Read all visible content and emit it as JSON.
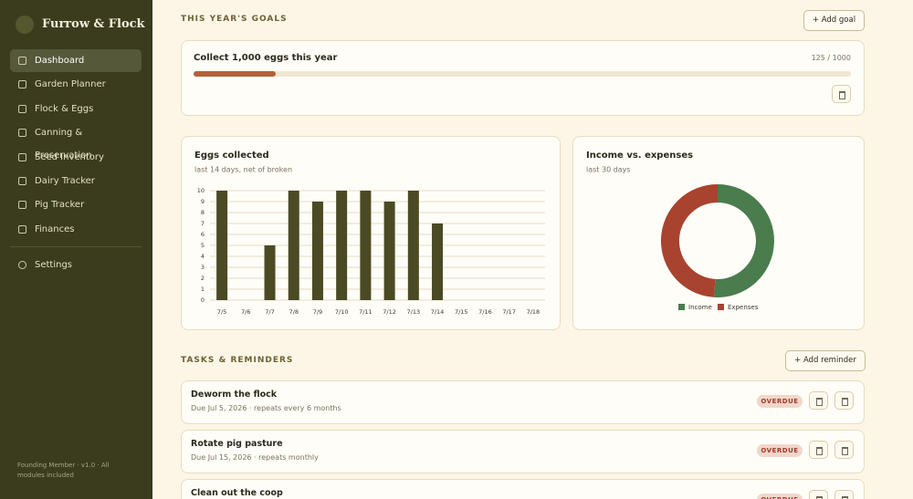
{
  "sidebar": {
    "brand": "Furrow & Flock",
    "nav": [
      "Dashboard",
      "Garden Planner",
      "Flock & Eggs",
      "Canning & Preservation",
      "Seed Inventory",
      "Dairy Tracker",
      "Pig Tracker",
      "Finances"
    ],
    "settings": "Settings",
    "footer": "Founding Member · v1.0 · All modules included"
  },
  "goals": {
    "heading": "THIS YEAR'S GOALS",
    "add_button": "+ Add goal",
    "items": [
      {
        "title": "Collect 1,000 eggs this year",
        "current": 125,
        "target": 1000,
        "label": "125 / 1000"
      }
    ]
  },
  "chart_data": [
    {
      "type": "bar",
      "title": "Eggs collected",
      "subtitle": "last 14 days, net of broken",
      "categories": [
        "7/5",
        "7/6",
        "7/7",
        "7/8",
        "7/9",
        "7/10",
        "7/11",
        "7/12",
        "7/13",
        "7/14",
        "7/15",
        "7/16",
        "7/17",
        "7/18"
      ],
      "values": [
        10,
        0,
        5,
        10,
        9,
        10,
        10,
        9,
        10,
        7,
        0,
        0,
        0,
        0
      ],
      "color": "#4a4a24",
      "ylim": [
        0,
        10
      ],
      "yticks": [
        0,
        1,
        2,
        3,
        4,
        5,
        6,
        7,
        8,
        9,
        10
      ],
      "grid": true
    },
    {
      "type": "pie",
      "donut": true,
      "title": "Income vs. expenses",
      "subtitle": "last 30 days",
      "categories": [
        "Income",
        "Expenses"
      ],
      "values": [
        51,
        49
      ],
      "colors": [
        "#4a7c4e",
        "#a8432f"
      ],
      "legend": "bottom"
    }
  ],
  "tasks": {
    "heading": "TASKS & REMINDERS",
    "add_button": "+ Add reminder",
    "items": [
      {
        "title": "Deworm the flock",
        "due": "Due Jul 5, 2026 · repeats every 6 months",
        "status": "OVERDUE"
      },
      {
        "title": "Rotate pig pasture",
        "due": "Due Jul 15, 2026 · repeats monthly",
        "status": "OVERDUE"
      },
      {
        "title": "Clean out the coop",
        "status": "OVERDUE"
      }
    ]
  }
}
